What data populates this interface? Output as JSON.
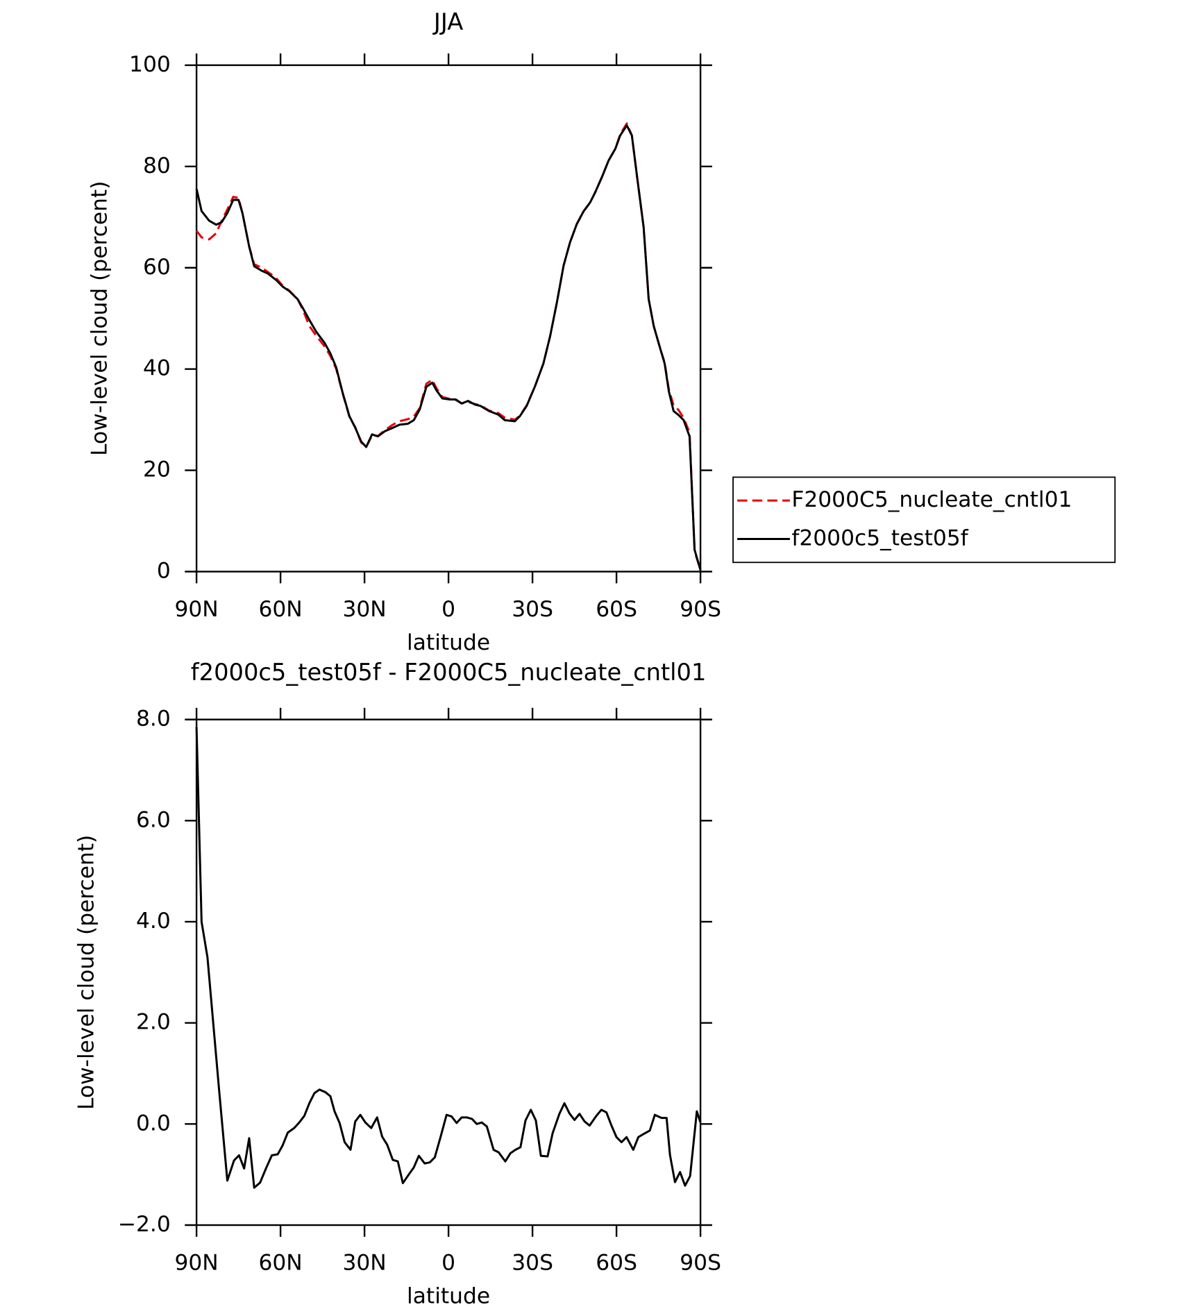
{
  "chart_data": [
    {
      "type": "line",
      "title": "JJA",
      "xlabel": "latitude",
      "ylabel": "Low-level cloud (percent)",
      "x": [
        90,
        88.2,
        85.5,
        83,
        81,
        79,
        76.9,
        75,
        73.6,
        71.2,
        69.4,
        66.7,
        64.6,
        61.6,
        59.3,
        56.9,
        53.9,
        52.1,
        49.7,
        47.3,
        44.3,
        42.2,
        40.1,
        37.8,
        35.4,
        33.3,
        31.2,
        29.4,
        27.3,
        25.2,
        22.8,
        19.9,
        17.5,
        14.5,
        12.4,
        10.3,
        7.9,
        5.8,
        4.3,
        2.2,
        -0.5,
        -2.6,
        -4.7,
        -7,
        -9.4,
        -11.5,
        -14.5,
        -17.8,
        -20.1,
        -23.7,
        -25.5,
        -27.9,
        -30.9,
        -33.9,
        -36.3,
        -38.7,
        -41.1,
        -43.4,
        -45.8,
        -48.2,
        -50.6,
        -52.4,
        -54.8,
        -57.2,
        -59.6,
        -61.3,
        -63.7,
        -65.5,
        -67.3,
        -69.7,
        -71.5,
        -73.3,
        -75.7,
        -77.2,
        -78.7,
        -80.4,
        -82.2,
        -84,
        -86.1,
        -87.9,
        -90
      ],
      "series": [
        {
          "name": "F2000C5_nucleate_cntl01",
          "color": "#e8000b",
          "style": "dashed",
          "values": [
            67.3,
            66,
            65.6,
            66.8,
            69.3,
            71.5,
            74,
            73.8,
            70.8,
            64.2,
            60.7,
            60,
            59.2,
            58,
            56.5,
            55.5,
            53.8,
            51.8,
            48.5,
            46.6,
            44.5,
            42.6,
            40,
            35.2,
            30.6,
            28.5,
            25.5,
            24.6,
            26.9,
            26.8,
            27.9,
            29,
            29.7,
            30.1,
            30.6,
            32.3,
            37.1,
            37.9,
            36.2,
            34.5,
            34.1,
            33.9,
            33.2,
            33.5,
            33.1,
            32.8,
            31.8,
            31.3,
            30.4,
            30,
            30.8,
            32.8,
            36.6,
            41.1,
            46.5,
            53.1,
            60.4,
            65,
            68.6,
            71.1,
            72.9,
            74.9,
            77.9,
            81.2,
            83.5,
            86.3,
            88.5,
            86.1,
            78.2,
            68,
            53.8,
            48.5,
            43.9,
            41.3,
            36,
            32.8,
            31.9,
            30.3,
            27.5,
            4,
            0.3
          ]
        },
        {
          "name": "f2000c5_test05f",
          "color": "#000000",
          "style": "solid",
          "values": [
            75.6,
            71.2,
            69.3,
            68.5,
            69,
            70.8,
            73.4,
            73.4,
            70.8,
            64.2,
            60.3,
            59.4,
            58.9,
            57.6,
            56.3,
            55.4,
            53.8,
            52.1,
            49.7,
            47.4,
            45.2,
            43.1,
            40.3,
            35.3,
            30.7,
            28.4,
            25.7,
            24.6,
            27.1,
            26.7,
            27.7,
            28.4,
            29,
            29.2,
            29.9,
            32,
            36.5,
            37.3,
            35.8,
            34.2,
            34,
            34,
            33.2,
            33.7,
            33,
            32.7,
            31.7,
            31,
            29.9,
            29.7,
            30.7,
            32.7,
            36.6,
            41.1,
            46.5,
            53.1,
            60.4,
            65,
            68.6,
            71.1,
            72.9,
            74.9,
            77.9,
            81.2,
            83.5,
            86.1,
            88.1,
            86.1,
            78.2,
            68,
            53.8,
            48.5,
            43.9,
            41.1,
            35.6,
            31.7,
            30.9,
            29.9,
            26.7,
            4.3,
            0.3
          ]
        }
      ],
      "xlim": [
        90,
        -90
      ],
      "xticks": [
        {
          "value": 90,
          "label": "90N"
        },
        {
          "value": 60,
          "label": "60N"
        },
        {
          "value": 30,
          "label": "30N"
        },
        0,
        {
          "value": -30,
          "label": "30S"
        },
        {
          "value": -60,
          "label": "60S"
        },
        {
          "value": -90,
          "label": "90S"
        }
      ],
      "ylim": [
        0,
        100
      ],
      "yticks": [
        0,
        20,
        40,
        60,
        80,
        100
      ],
      "legend": "right"
    },
    {
      "type": "line",
      "title": "f2000c5_test05f - F2000C5_nucleate_cntl01",
      "xlabel": "latitude",
      "ylabel": "Low-level cloud (percent)",
      "x": [
        90,
        88.2,
        86.1,
        81.9,
        79,
        76.6,
        74.8,
        73,
        71.2,
        69.4,
        67.3,
        65.2,
        63.1,
        61,
        59.3,
        57.4,
        55.1,
        53.3,
        51.5,
        49.7,
        47.9,
        46.1,
        44,
        42.2,
        40.7,
        38.9,
        37.1,
        35,
        33.3,
        31.5,
        29.7,
        27.6,
        25.5,
        23.7,
        21.9,
        19.9,
        18.1,
        16.3,
        14.2,
        12.4,
        10.6,
        8.5,
        6.7,
        4.9,
        2.8,
        0.7,
        -1.1,
        -2.9,
        -4.7,
        -6.5,
        -8.4,
        -10.1,
        -11.9,
        -13.7,
        -16.1,
        -17.9,
        -20.3,
        -22.1,
        -23.9,
        -25.7,
        -27.5,
        -29.4,
        -31.2,
        -33,
        -35.4,
        -37.2,
        -39.6,
        -41.4,
        -43.2,
        -45,
        -46.8,
        -48.6,
        -50.4,
        -52.8,
        -54.6,
        -56.4,
        -58.2,
        -60,
        -61.8,
        -63.6,
        -66,
        -67.8,
        -69.6,
        -71.9,
        -73.7,
        -76.1,
        -77.9,
        -79.1,
        -80.9,
        -82.7,
        -84.5,
        -86.3,
        -88.7,
        -90
      ],
      "series": [
        {
          "color": "#000000",
          "style": "solid",
          "values": [
            7.85,
            4.0,
            3.3,
            0.65,
            -1.12,
            -0.72,
            -0.62,
            -0.88,
            -0.28,
            -1.26,
            -1.16,
            -0.88,
            -0.62,
            -0.6,
            -0.43,
            -0.17,
            -0.08,
            0.03,
            0.16,
            0.41,
            0.61,
            0.68,
            0.63,
            0.55,
            0.25,
            0.02,
            -0.36,
            -0.51,
            0.05,
            0.18,
            0.03,
            -0.08,
            0.13,
            -0.25,
            -0.41,
            -0.71,
            -0.74,
            -1.17,
            -1.0,
            -0.86,
            -0.63,
            -0.78,
            -0.76,
            -0.66,
            -0.25,
            0.18,
            0.15,
            0.02,
            0.13,
            0.13,
            0.1,
            0.0,
            0.03,
            -0.05,
            -0.51,
            -0.56,
            -0.74,
            -0.58,
            -0.51,
            -0.46,
            0.07,
            0.28,
            0.07,
            -0.63,
            -0.64,
            -0.18,
            0.2,
            0.41,
            0.21,
            0.08,
            0.2,
            0.05,
            -0.03,
            0.16,
            0.28,
            0.23,
            -0.03,
            -0.26,
            -0.36,
            -0.26,
            -0.51,
            -0.26,
            -0.2,
            -0.13,
            0.18,
            0.12,
            0.12,
            -0.61,
            -1.15,
            -0.95,
            -1.22,
            -1.03,
            0.25,
            0.03
          ]
        }
      ],
      "xlim": [
        90,
        -90
      ],
      "xticks": [
        {
          "value": 90,
          "label": "90N"
        },
        {
          "value": 60,
          "label": "60N"
        },
        {
          "value": 30,
          "label": "30N"
        },
        0,
        {
          "value": -30,
          "label": "30S"
        },
        {
          "value": -60,
          "label": "60S"
        },
        {
          "value": -90,
          "label": "90S"
        }
      ],
      "ylim": [
        -2,
        8
      ],
      "yticks": [
        {
          "value": -2,
          "label": "−2.0"
        },
        {
          "value": 0,
          "label": "0.0"
        },
        {
          "value": 2,
          "label": "2.0"
        },
        {
          "value": 4,
          "label": "4.0"
        },
        {
          "value": 6,
          "label": "6.0"
        },
        {
          "value": 8,
          "label": "8.0"
        }
      ]
    }
  ]
}
